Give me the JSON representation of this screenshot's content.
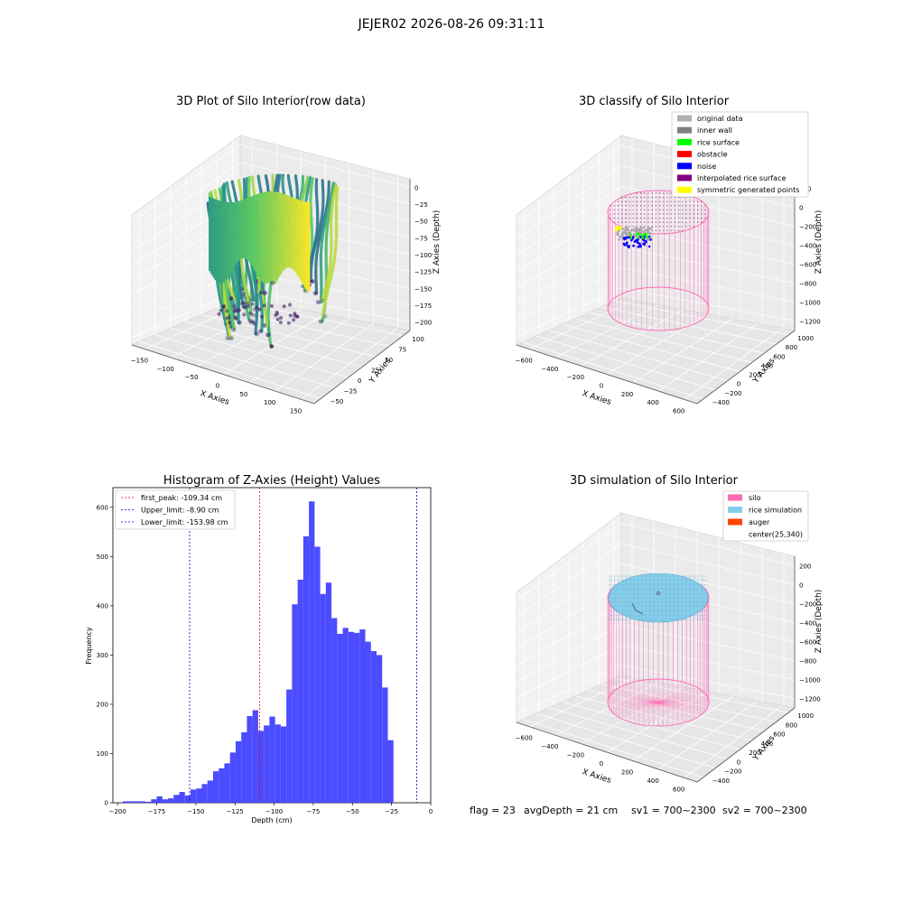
{
  "suptitle": "JEJER02 2026-08-26 09:31:11",
  "panels": {
    "raw": {
      "title": "3D Plot of Silo Interior(row data)",
      "xlabel": "X Axies",
      "ylabel": "Y Axies",
      "zlabel": "Z Axies (Depth)",
      "x_ticks": [
        "−150",
        "−100",
        "−50",
        "0",
        "50",
        "100",
        "150"
      ],
      "y_ticks": [
        "−50",
        "−25",
        "0",
        "25",
        "50",
        "75",
        "100"
      ],
      "z_ticks": [
        "0",
        "−25",
        "−50",
        "−75",
        "−100",
        "−125",
        "−150",
        "−175",
        "−200"
      ],
      "colormap": [
        "#440154",
        "#3b528b",
        "#21918c",
        "#5ec962",
        "#fde725"
      ]
    },
    "classify": {
      "title": "3D classify of Silo Interior",
      "xlabel": "X Axies",
      "ylabel": "Y Axies",
      "zlabel": "Z Axies (Depth)",
      "x_ticks": [
        "−600",
        "−400",
        "−200",
        "0",
        "200",
        "400",
        "600"
      ],
      "y_ticks": [
        "−400",
        "−200",
        "0",
        "200",
        "400",
        "600",
        "800",
        "1000"
      ],
      "z_ticks": [
        "200",
        "0",
        "−200",
        "−400",
        "−600",
        "−800",
        "−1000",
        "−1200"
      ],
      "legend": [
        {
          "label": "original data",
          "color": "#b0b0b0"
        },
        {
          "label": "inner wall",
          "color": "#808080"
        },
        {
          "label": "rice surface",
          "color": "#00ff00"
        },
        {
          "label": "obstacle",
          "color": "#ff0000"
        },
        {
          "label": "noise",
          "color": "#0000ff"
        },
        {
          "label": "interpolated rice surface",
          "color": "#800080"
        },
        {
          "label": "symmetric generated points",
          "color": "#ffff00"
        }
      ]
    },
    "histogram": {
      "title": "Histogram of Z-Axies (Height) Values",
      "xlabel": "Depth (cm)",
      "ylabel": "Frequency",
      "x_ticks": [
        "−200",
        "−175",
        "−150",
        "−125",
        "−100",
        "−75",
        "−50",
        "−25",
        "0"
      ],
      "y_ticks": [
        "0",
        "100",
        "200",
        "300",
        "400",
        "500",
        "600"
      ],
      "legend": [
        {
          "label": "first_peak: -109.34 cm",
          "color": "#ff0000"
        },
        {
          "label": "Upper_limit: -8.90 cm",
          "color": "#0000cc"
        },
        {
          "label": "Lower_limit: -153.98 cm",
          "color": "#0000cc"
        }
      ]
    },
    "simulation": {
      "title": "3D simulation of Silo Interior",
      "xlabel": "X Axies",
      "ylabel": "Y Axies",
      "zlabel": "Z Axies (Depth)",
      "x_ticks": [
        "−600",
        "−400",
        "−200",
        "0",
        "200",
        "400",
        "600"
      ],
      "y_ticks": [
        "−400",
        "−200",
        "0",
        "200",
        "400",
        "600",
        "800",
        "1000"
      ],
      "z_ticks": [
        "200",
        "0",
        "−200",
        "−400",
        "−600",
        "−800",
        "−1000",
        "−1200"
      ],
      "legend": [
        {
          "label": "silo",
          "color": "#ff69b4"
        },
        {
          "label": "rice simulation",
          "color": "#87ceeb"
        },
        {
          "label": "auger",
          "color": "#ff4500"
        },
        {
          "label": "center(25,340)",
          "color": ""
        }
      ]
    }
  },
  "footer": {
    "flag": "flag = 23",
    "avg": "avgDepth = 21 cm",
    "sv1": "sv1 = 700~2300",
    "sv2": "sv2 = 700~2300"
  },
  "chart_data": {
    "type": "bar",
    "title": "Histogram of Z-Axies (Height) Values",
    "xlabel": "Depth (cm)",
    "ylabel": "Frequency",
    "xlim": [
      -203,
      0
    ],
    "ylim": [
      0,
      640
    ],
    "bar_color": "#4b4bff",
    "bin_width": 3.6,
    "bin_starts": [
      -196.6,
      -193.0,
      -189.4,
      -185.8,
      -182.2,
      -178.6,
      -175.0,
      -171.4,
      -167.8,
      -164.2,
      -160.6,
      -157.0,
      -153.4,
      -149.8,
      -146.2,
      -142.6,
      -139.0,
      -135.4,
      -131.8,
      -128.2,
      -124.6,
      -121.0,
      -117.4,
      -113.8,
      -110.2,
      -106.6,
      -103.0,
      -99.4,
      -95.8,
      -92.2,
      -88.6,
      -85.0,
      -81.4,
      -77.8,
      -74.2,
      -70.6,
      -67.0,
      -63.4,
      -59.8,
      -56.2,
      -52.6,
      -49.0,
      -45.4,
      -41.8,
      -38.2,
      -34.6,
      -31.0,
      -27.4,
      -23.8,
      -20.2,
      -16.6,
      -13.0,
      -9.4
    ],
    "values": [
      3,
      3,
      3,
      3,
      2,
      7,
      13,
      7,
      9,
      16,
      22,
      15,
      27,
      29,
      38,
      45,
      64,
      70,
      80,
      102,
      125,
      143,
      176,
      188,
      146,
      157,
      175,
      159,
      155,
      230,
      403,
      453,
      541,
      612,
      520,
      424,
      447,
      375,
      343,
      355,
      347,
      345,
      352,
      327,
      308,
      300,
      234,
      127,
      0,
      0,
      0,
      0,
      0
    ],
    "vlines": [
      {
        "name": "first_peak",
        "x": -109.34,
        "color": "#ff0000"
      },
      {
        "name": "Upper_limit",
        "x": -8.9,
        "color": "#0000cc"
      },
      {
        "name": "Lower_limit",
        "x": -153.98,
        "color": "#0000cc"
      }
    ]
  }
}
